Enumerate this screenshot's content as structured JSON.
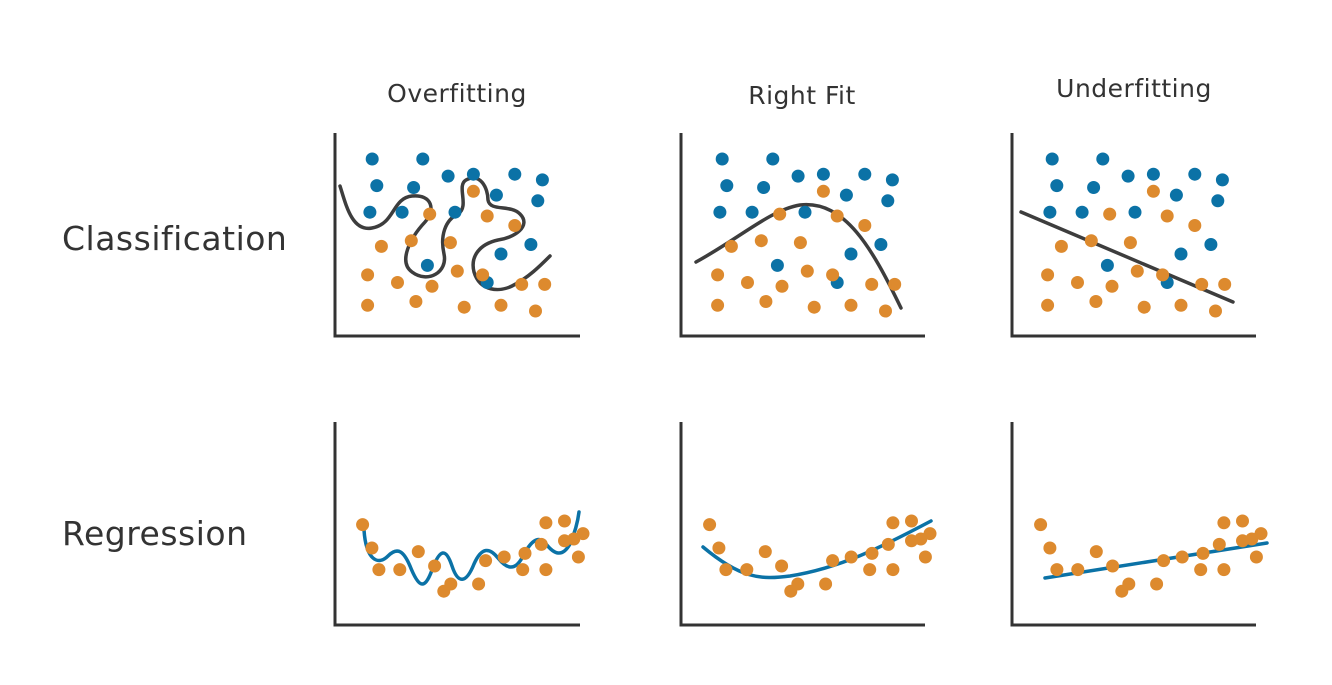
{
  "columns": [
    {
      "label": "Overfitting"
    },
    {
      "label": "Right Fit"
    },
    {
      "label": "Underfitting"
    }
  ],
  "rows": [
    {
      "label": "Classification"
    },
    {
      "label": "Regression"
    }
  ],
  "colors": {
    "class_a": "#0b72a6",
    "class_b": "#dd8a2e",
    "fit_line": "#0b72a6",
    "boundary": "#3d3d3d",
    "axis": "#333333",
    "text": "#333333"
  },
  "classification": {
    "blue_points": [
      [
        0.14,
        0.9
      ],
      [
        0.36,
        0.9
      ],
      [
        0.16,
        0.76
      ],
      [
        0.32,
        0.75
      ],
      [
        0.47,
        0.81
      ],
      [
        0.58,
        0.82
      ],
      [
        0.76,
        0.82
      ],
      [
        0.88,
        0.79
      ],
      [
        0.13,
        0.62
      ],
      [
        0.27,
        0.62
      ],
      [
        0.5,
        0.62
      ],
      [
        0.68,
        0.71
      ],
      [
        0.86,
        0.68
      ],
      [
        0.83,
        0.45
      ],
      [
        0.38,
        0.34
      ],
      [
        0.7,
        0.4
      ],
      [
        0.64,
        0.25
      ]
    ],
    "orange_points": [
      [
        0.58,
        0.73
      ],
      [
        0.39,
        0.61
      ],
      [
        0.64,
        0.6
      ],
      [
        0.76,
        0.55
      ],
      [
        0.18,
        0.44
      ],
      [
        0.31,
        0.47
      ],
      [
        0.48,
        0.46
      ],
      [
        0.12,
        0.29
      ],
      [
        0.25,
        0.25
      ],
      [
        0.4,
        0.23
      ],
      [
        0.51,
        0.31
      ],
      [
        0.62,
        0.29
      ],
      [
        0.79,
        0.24
      ],
      [
        0.89,
        0.24
      ],
      [
        0.12,
        0.13
      ],
      [
        0.33,
        0.15
      ],
      [
        0.54,
        0.12
      ],
      [
        0.7,
        0.13
      ],
      [
        0.85,
        0.1
      ]
    ]
  },
  "regression": {
    "points": [
      [
        0.02,
        0.53
      ],
      [
        0.06,
        0.4
      ],
      [
        0.09,
        0.28
      ],
      [
        0.18,
        0.28
      ],
      [
        0.26,
        0.38
      ],
      [
        0.33,
        0.3
      ],
      [
        0.4,
        0.2
      ],
      [
        0.52,
        0.2
      ],
      [
        0.37,
        0.16
      ],
      [
        0.55,
        0.33
      ],
      [
        0.63,
        0.35
      ],
      [
        0.72,
        0.37
      ],
      [
        0.79,
        0.42
      ],
      [
        0.89,
        0.44
      ],
      [
        0.97,
        0.48
      ],
      [
        0.81,
        0.54
      ],
      [
        0.89,
        0.55
      ],
      [
        0.93,
        0.45
      ],
      [
        0.81,
        0.28
      ],
      [
        0.95,
        0.35
      ],
      [
        0.71,
        0.28
      ]
    ]
  }
}
